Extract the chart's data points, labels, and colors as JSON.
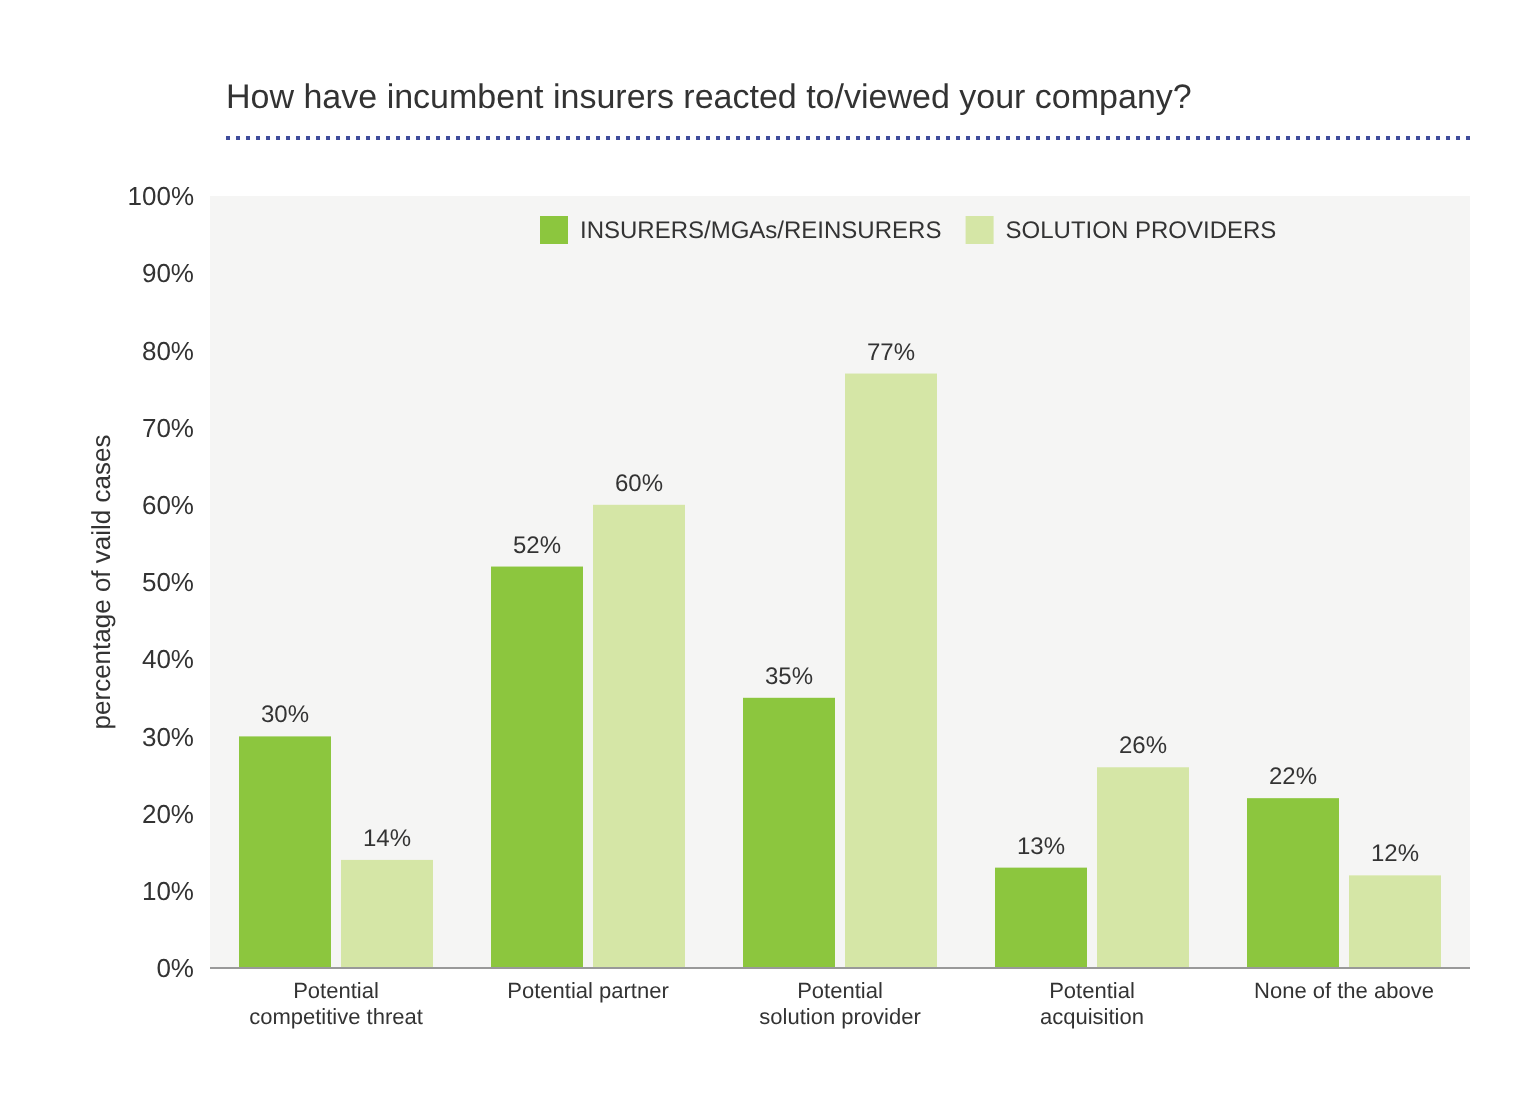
{
  "chart_data": {
    "type": "bar",
    "title": "How have incumbent insurers reacted to/viewed your company?",
    "ylabel": "percentage of vaild cases",
    "categories": [
      "Potential competitive threat",
      "Potential partner",
      "Potential solution provider",
      "Potential acquisition",
      "None of the above"
    ],
    "series": [
      {
        "name": "INSURERS/MGAs/REINSURERS",
        "color": "#8cc63e",
        "values": [
          30,
          52,
          35,
          13,
          22
        ],
        "value_labels": [
          "30%",
          "52%",
          "35%",
          "13%",
          "22%"
        ]
      },
      {
        "name": "SOLUTION PROVIDERS",
        "color": "#d5e6a6",
        "values": [
          14,
          60,
          77,
          26,
          12
        ],
        "value_labels": [
          "14%",
          "60%",
          "77%",
          "26%",
          "12%"
        ]
      }
    ],
    "ylim": [
      0,
      100
    ],
    "yticks": [
      {
        "value": 0,
        "label": "0%"
      },
      {
        "value": 10,
        "label": "10%"
      },
      {
        "value": 20,
        "label": "20%"
      },
      {
        "value": 30,
        "label": "30%"
      },
      {
        "value": 40,
        "label": "40%"
      },
      {
        "value": 50,
        "label": "50%"
      },
      {
        "value": 60,
        "label": "60%"
      },
      {
        "value": 70,
        "label": "70%"
      },
      {
        "value": 80,
        "label": "80%"
      },
      {
        "value": 90,
        "label": "90%"
      },
      {
        "value": 100,
        "label": "100%"
      }
    ],
    "grid": false,
    "legend": "top"
  }
}
